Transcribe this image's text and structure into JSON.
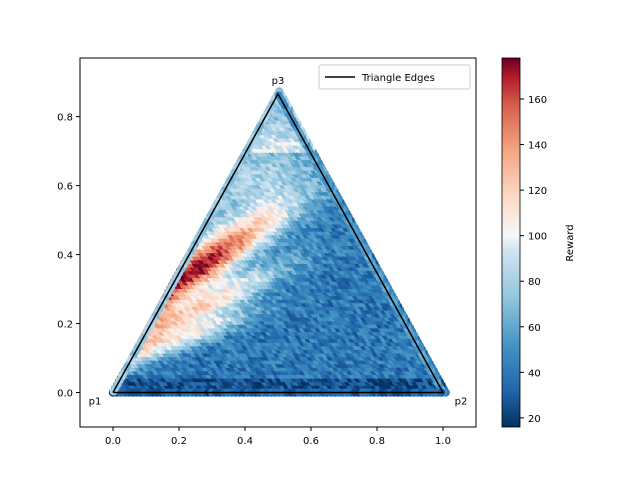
{
  "chart_data": {
    "type": "scatter",
    "title": "",
    "xlabel": "",
    "ylabel": "",
    "xlim": [
      -0.1,
      1.1
    ],
    "ylim": [
      -0.1,
      0.97
    ],
    "x_ticks": [
      0.0,
      0.2,
      0.4,
      0.6,
      0.8,
      1.0
    ],
    "y_ticks": [
      0.0,
      0.2,
      0.4,
      0.6,
      0.8
    ],
    "x_tick_labels": [
      "0.0",
      "0.2",
      "0.4",
      "0.6",
      "0.8",
      "1.0"
    ],
    "y_tick_labels": [
      "0.0",
      "0.2",
      "0.4",
      "0.6",
      "0.8"
    ],
    "grid": false,
    "vertices": [
      {
        "name": "p1",
        "x": 0.0,
        "y": 0.0
      },
      {
        "name": "p2",
        "x": 1.0,
        "y": 0.0
      },
      {
        "name": "p3",
        "x": 0.5,
        "y": 0.866
      }
    ],
    "series": [
      {
        "name": "Triangle Edges",
        "type": "line",
        "color": "#000000",
        "x": [
          0.0,
          1.0,
          0.5,
          0.0
        ],
        "y": [
          0.0,
          0.0,
          0.866,
          0.0
        ]
      }
    ],
    "legend": {
      "position": "upper-right",
      "entries": [
        "Triangle Edges"
      ]
    },
    "colorbar": {
      "label": "Reward",
      "colormap": "RdBu_r",
      "range": [
        16,
        178
      ],
      "ticks": [
        20,
        40,
        60,
        80,
        100,
        120,
        140,
        160
      ],
      "tick_labels": [
        "20",
        "40",
        "60",
        "80",
        "100",
        "120",
        "140",
        "160"
      ]
    },
    "reward_field_description": "Reward sampled over the triangle; high (red, up to ~175) along a band from near (0.25,0.42) toward (0.45,0.52); low (blue, ~20-45) over the lower-right region and near the base.",
    "reward_field_regions": [
      {
        "x": 0.25,
        "y": 0.43,
        "reward": 175
      },
      {
        "x": 0.35,
        "y": 0.48,
        "reward": 150
      },
      {
        "x": 0.48,
        "y": 0.52,
        "reward": 110
      },
      {
        "x": 0.3,
        "y": 0.3,
        "reward": 130
      },
      {
        "x": 0.5,
        "y": 0.75,
        "reward": 70
      },
      {
        "x": 0.6,
        "y": 0.6,
        "reward": 45
      },
      {
        "x": 0.7,
        "y": 0.2,
        "reward": 35
      },
      {
        "x": 0.3,
        "y": 0.03,
        "reward": 25
      }
    ],
    "colors": {
      "line": "#000000",
      "blue_low": "#053061",
      "white_mid": "#f7f7f7",
      "red_high": "#67001f"
    }
  }
}
